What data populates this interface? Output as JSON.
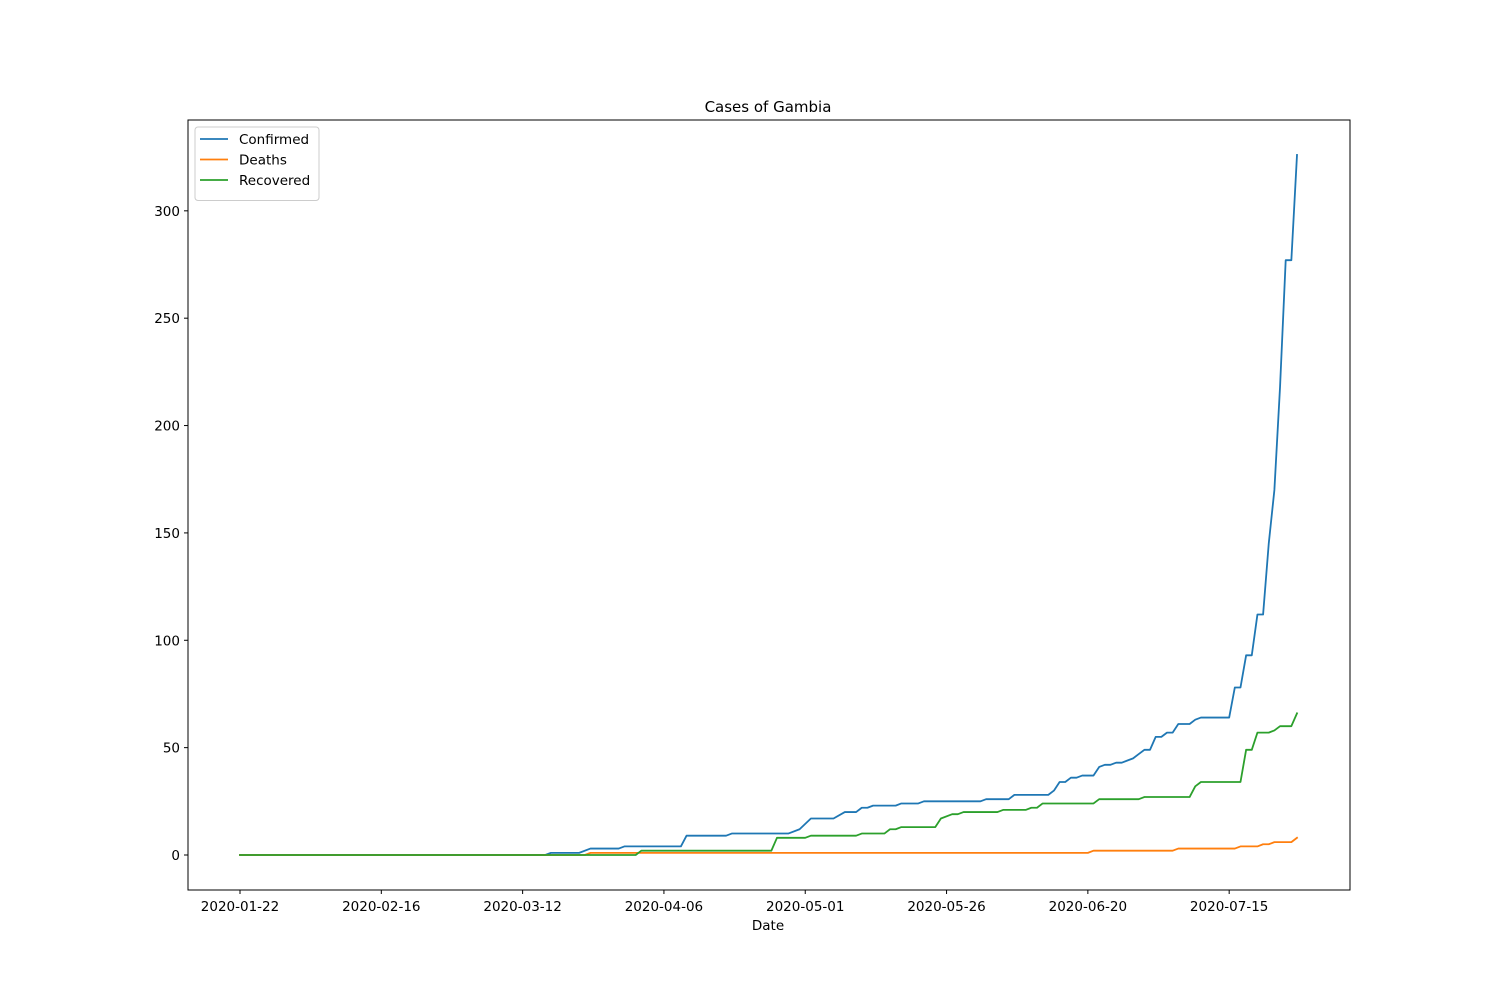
{
  "chart_data": {
    "type": "line",
    "title": "Cases of Gambia",
    "xlabel": "Date",
    "ylabel": "",
    "x_range": [
      "2020-01-22",
      "2020-07-27"
    ],
    "ylim": [
      -16.3,
      342.3
    ],
    "x_ticks": [
      "2020-01-22",
      "2020-02-16",
      "2020-03-12",
      "2020-04-06",
      "2020-05-01",
      "2020-05-26",
      "2020-06-20",
      "2020-07-15"
    ],
    "y_ticks": [
      0,
      50,
      100,
      150,
      200,
      250,
      300
    ],
    "grid": false,
    "legend": {
      "position": "top-left"
    },
    "series": [
      {
        "name": "Confirmed",
        "color": "#1f77b4",
        "points": [
          [
            "2020-01-22",
            0
          ],
          [
            "2020-03-16",
            0
          ],
          [
            "2020-03-17",
            1
          ],
          [
            "2020-03-22",
            1
          ],
          [
            "2020-03-24",
            3
          ],
          [
            "2020-03-29",
            3
          ],
          [
            "2020-03-30",
            4
          ],
          [
            "2020-04-09",
            4
          ],
          [
            "2020-04-10",
            9
          ],
          [
            "2020-04-17",
            9
          ],
          [
            "2020-04-18",
            10
          ],
          [
            "2020-04-28",
            10
          ],
          [
            "2020-04-30",
            12
          ],
          [
            "2020-05-02",
            17
          ],
          [
            "2020-05-06",
            17
          ],
          [
            "2020-05-08",
            20
          ],
          [
            "2020-05-10",
            20
          ],
          [
            "2020-05-11",
            22
          ],
          [
            "2020-05-12",
            22
          ],
          [
            "2020-05-13",
            23
          ],
          [
            "2020-05-17",
            23
          ],
          [
            "2020-05-18",
            24
          ],
          [
            "2020-05-21",
            24
          ],
          [
            "2020-05-22",
            25
          ],
          [
            "2020-06-01",
            25
          ],
          [
            "2020-06-02",
            26
          ],
          [
            "2020-06-06",
            26
          ],
          [
            "2020-06-07",
            28
          ],
          [
            "2020-06-13",
            28
          ],
          [
            "2020-06-14",
            30
          ],
          [
            "2020-06-15",
            34
          ],
          [
            "2020-06-16",
            34
          ],
          [
            "2020-06-17",
            36
          ],
          [
            "2020-06-18",
            36
          ],
          [
            "2020-06-19",
            37
          ],
          [
            "2020-06-21",
            37
          ],
          [
            "2020-06-22",
            41
          ],
          [
            "2020-06-23",
            42
          ],
          [
            "2020-06-24",
            42
          ],
          [
            "2020-06-25",
            43
          ],
          [
            "2020-06-26",
            43
          ],
          [
            "2020-06-27",
            44
          ],
          [
            "2020-06-28",
            45
          ],
          [
            "2020-06-29",
            47
          ],
          [
            "2020-06-30",
            49
          ],
          [
            "2020-07-01",
            49
          ],
          [
            "2020-07-02",
            55
          ],
          [
            "2020-07-03",
            55
          ],
          [
            "2020-07-04",
            57
          ],
          [
            "2020-07-05",
            57
          ],
          [
            "2020-07-06",
            61
          ],
          [
            "2020-07-08",
            61
          ],
          [
            "2020-07-09",
            63
          ],
          [
            "2020-07-10",
            64
          ],
          [
            "2020-07-15",
            64
          ],
          [
            "2020-07-16",
            78
          ],
          [
            "2020-07-17",
            78
          ],
          [
            "2020-07-18",
            93
          ],
          [
            "2020-07-19",
            93
          ],
          [
            "2020-07-20",
            112
          ],
          [
            "2020-07-21",
            112
          ],
          [
            "2020-07-22",
            145
          ],
          [
            "2020-07-23",
            170
          ],
          [
            "2020-07-24",
            218
          ],
          [
            "2020-07-25",
            277
          ],
          [
            "2020-07-26",
            277
          ],
          [
            "2020-07-27",
            326
          ]
        ]
      },
      {
        "name": "Deaths",
        "color": "#ff7f0e",
        "points": [
          [
            "2020-01-22",
            0
          ],
          [
            "2020-03-23",
            0
          ],
          [
            "2020-03-24",
            1
          ],
          [
            "2020-06-20",
            1
          ],
          [
            "2020-06-21",
            2
          ],
          [
            "2020-07-05",
            2
          ],
          [
            "2020-07-06",
            3
          ],
          [
            "2020-07-16",
            3
          ],
          [
            "2020-07-17",
            4
          ],
          [
            "2020-07-20",
            4
          ],
          [
            "2020-07-21",
            5
          ],
          [
            "2020-07-22",
            5
          ],
          [
            "2020-07-23",
            6
          ],
          [
            "2020-07-25",
            6
          ],
          [
            "2020-07-26",
            6
          ],
          [
            "2020-07-27",
            8
          ]
        ]
      },
      {
        "name": "Recovered",
        "color": "#2ca02c",
        "points": [
          [
            "2020-01-22",
            0
          ],
          [
            "2020-04-01",
            0
          ],
          [
            "2020-04-02",
            2
          ],
          [
            "2020-04-25",
            2
          ],
          [
            "2020-04-26",
            8
          ],
          [
            "2020-05-01",
            8
          ],
          [
            "2020-05-02",
            9
          ],
          [
            "2020-05-10",
            9
          ],
          [
            "2020-05-11",
            10
          ],
          [
            "2020-05-15",
            10
          ],
          [
            "2020-05-16",
            12
          ],
          [
            "2020-05-17",
            12
          ],
          [
            "2020-05-18",
            13
          ],
          [
            "2020-05-24",
            13
          ],
          [
            "2020-05-25",
            17
          ],
          [
            "2020-05-27",
            19
          ],
          [
            "2020-05-28",
            19
          ],
          [
            "2020-05-29",
            20
          ],
          [
            "2020-06-04",
            20
          ],
          [
            "2020-06-05",
            21
          ],
          [
            "2020-06-09",
            21
          ],
          [
            "2020-06-10",
            22
          ],
          [
            "2020-06-11",
            22
          ],
          [
            "2020-06-12",
            24
          ],
          [
            "2020-06-21",
            24
          ],
          [
            "2020-06-22",
            26
          ],
          [
            "2020-06-29",
            26
          ],
          [
            "2020-06-30",
            27
          ],
          [
            "2020-07-08",
            27
          ],
          [
            "2020-07-09",
            32
          ],
          [
            "2020-07-10",
            34
          ],
          [
            "2020-07-17",
            34
          ],
          [
            "2020-07-18",
            49
          ],
          [
            "2020-07-19",
            49
          ],
          [
            "2020-07-20",
            57
          ],
          [
            "2020-07-22",
            57
          ],
          [
            "2020-07-23",
            58
          ],
          [
            "2020-07-24",
            60
          ],
          [
            "2020-07-26",
            60
          ],
          [
            "2020-07-27",
            66
          ]
        ]
      }
    ]
  }
}
